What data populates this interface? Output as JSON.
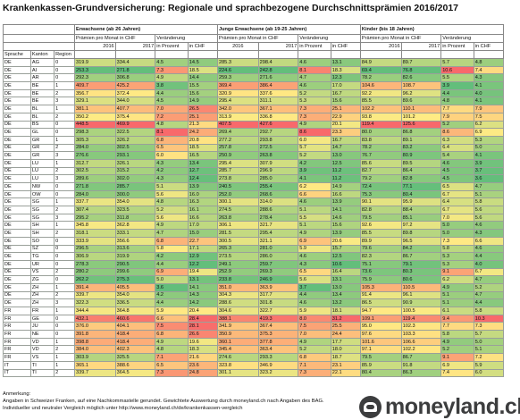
{
  "title": "Krankenkassen-Grundversicherung: Regionale und sprachbezogene Durchschnittsprämien 2016/2017",
  "headers": {
    "groups": [
      "Erwachsene (ab 26 Jahren)",
      "Junge Erwachsene (ab 19-25 Jahren)",
      "Kinder (bis 18 Jahren)"
    ],
    "premium_label": "Prämien pro Monat in CHF",
    "change_label": "Veränderung",
    "year_2016": "2016",
    "year_2017": "2017",
    "pct_label": "in Prozent",
    "chf_label": "in CHF",
    "sprache": "Sprache",
    "kanton": "Kanton",
    "region": "Region"
  },
  "colors": {
    "green": "#63be7b",
    "yellow": "#ffeb84",
    "red": "#f8696b"
  },
  "rows": [
    [
      "DE",
      "AG",
      "0",
      "319.9",
      "334.4",
      "4.5",
      "14.5",
      "285.3",
      "298.4",
      "4.6",
      "13.1",
      "84.9",
      "89.7",
      "5.7",
      "4.8"
    ],
    [
      "DE",
      "AI",
      "0",
      "253.3",
      "271.8",
      "7.3",
      "18.5",
      "224.6",
      "242.8",
      "8.1",
      "18.3",
      "69.4",
      "76.8",
      "10.6",
      "7.4"
    ],
    [
      "DE",
      "AR",
      "0",
      "292.3",
      "306.8",
      "4.9",
      "14.4",
      "259.3",
      "271.6",
      "4.7",
      "12.3",
      "78.2",
      "82.6",
      "5.5",
      "4.3"
    ],
    [
      "DE",
      "BE",
      "1",
      "409.7",
      "425.2",
      "3.8",
      "15.5",
      "369.4",
      "386.4",
      "4.6",
      "17.0",
      "104.6",
      "108.7",
      "3.9",
      "4.1"
    ],
    [
      "DE",
      "BE",
      "2",
      "356.7",
      "372.4",
      "4.4",
      "15.6",
      "320.9",
      "337.6",
      "5.2",
      "16.7",
      "92.2",
      "96.2",
      "4.4",
      "4.0"
    ],
    [
      "DE",
      "BE",
      "3",
      "329.1",
      "344.0",
      "4.5",
      "14.9",
      "295.4",
      "311.1",
      "5.3",
      "15.6",
      "85.5",
      "89.6",
      "4.8",
      "4.1"
    ],
    [
      "DE",
      "BL",
      "1",
      "381.1",
      "407.7",
      "7.0",
      "26.5",
      "342.0",
      "367.1",
      "7.3",
      "25.1",
      "102.2",
      "110.1",
      "7.7",
      "7.9"
    ],
    [
      "DE",
      "BL",
      "2",
      "350.2",
      "375.4",
      "7.2",
      "25.1",
      "313.9",
      "336.8",
      "7.3",
      "22.9",
      "93.8",
      "101.2",
      "7.9",
      "7.5"
    ],
    [
      "DE",
      "BS",
      "0",
      "448.5",
      "469.9",
      "4.8",
      "21.3",
      "407.5",
      "427.6",
      "4.9",
      "20.1",
      "119.4",
      "125.6",
      "5.2",
      "6.2"
    ],
    [
      "DE",
      "GL",
      "0",
      "298.3",
      "322.5",
      "8.1",
      "24.2",
      "269.4",
      "292.7",
      "8.6",
      "23.3",
      "80.0",
      "86.8",
      "8.6",
      "6.9"
    ],
    [
      "DE",
      "GR",
      "1",
      "305.3",
      "326.2",
      "6.8",
      "20.8",
      "277.2",
      "293.8",
      "6.0",
      "16.7",
      "83.8",
      "89.1",
      "6.3",
      "5.3"
    ],
    [
      "DE",
      "GR",
      "2",
      "284.0",
      "302.5",
      "6.5",
      "18.5",
      "257.8",
      "272.5",
      "5.7",
      "14.7",
      "78.2",
      "83.2",
      "6.4",
      "5.0"
    ],
    [
      "DE",
      "GR",
      "3",
      "276.6",
      "293.1",
      "6.0",
      "16.5",
      "250.9",
      "263.8",
      "5.2",
      "13.0",
      "76.7",
      "80.9",
      "5.4",
      "4.1"
    ],
    [
      "DE",
      "LU",
      "1",
      "312.7",
      "326.1",
      "4.3",
      "13.4",
      "295.4",
      "307.9",
      "4.2",
      "12.5",
      "85.6",
      "89.5",
      "4.6",
      "3.9"
    ],
    [
      "DE",
      "LU",
      "2",
      "302.5",
      "315.2",
      "4.2",
      "12.7",
      "285.7",
      "296.9",
      "3.9",
      "11.2",
      "82.7",
      "86.4",
      "4.5",
      "3.7"
    ],
    [
      "DE",
      "LU",
      "3",
      "289.6",
      "302.0",
      "4.3",
      "12.4",
      "273.8",
      "285.0",
      "4.1",
      "11.2",
      "79.2",
      "82.8",
      "4.5",
      "3.6"
    ],
    [
      "DE",
      "NW",
      "0",
      "271.8",
      "285.7",
      "5.1",
      "13.9",
      "240.5",
      "255.4",
      "6.2",
      "14.9",
      "72.4",
      "77.1",
      "6.5",
      "4.7"
    ],
    [
      "DE",
      "OW",
      "0",
      "284.0",
      "300.0",
      "5.6",
      "16.0",
      "252.0",
      "268.6",
      "6.6",
      "16.6",
      "75.3",
      "80.4",
      "6.7",
      "5.1"
    ],
    [
      "DE",
      "SG",
      "1",
      "337.7",
      "354.0",
      "4.8",
      "16.3",
      "300.1",
      "314.0",
      "4.6",
      "13.9",
      "90.1",
      "95.9",
      "6.4",
      "5.8"
    ],
    [
      "DE",
      "SG",
      "2",
      "307.4",
      "323.5",
      "5.2",
      "16.1",
      "274.5",
      "288.6",
      "5.1",
      "14.1",
      "82.8",
      "88.4",
      "6.7",
      "5.6"
    ],
    [
      "DE",
      "SG",
      "3",
      "295.2",
      "311.8",
      "5.6",
      "16.6",
      "263.8",
      "278.4",
      "5.5",
      "14.6",
      "79.5",
      "85.1",
      "7.0",
      "5.6"
    ],
    [
      "DE",
      "SH",
      "1",
      "345.8",
      "362.8",
      "4.9",
      "17.0",
      "306.1",
      "321.7",
      "5.1",
      "15.6",
      "92.6",
      "97.2",
      "5.0",
      "4.6"
    ],
    [
      "DE",
      "SH",
      "2",
      "318.1",
      "333.1",
      "4.7",
      "15.0",
      "281.5",
      "295.4",
      "4.9",
      "13.9",
      "85.5",
      "89.8",
      "5.0",
      "4.3"
    ],
    [
      "DE",
      "SO",
      "0",
      "333.9",
      "356.6",
      "6.8",
      "22.7",
      "300.5",
      "321.1",
      "6.9",
      "20.6",
      "89.9",
      "96.5",
      "7.3",
      "6.6"
    ],
    [
      "DE",
      "SZ",
      "0",
      "296.5",
      "313.6",
      "5.8",
      "17.1",
      "265.3",
      "281.0",
      "5.9",
      "15.7",
      "79.6",
      "84.2",
      "5.8",
      "4.6"
    ],
    [
      "DE",
      "TG",
      "0",
      "306.9",
      "319.9",
      "4.2",
      "12.9",
      "273.5",
      "286.0",
      "4.6",
      "12.5",
      "82.3",
      "86.7",
      "5.3",
      "4.4"
    ],
    [
      "DE",
      "UR",
      "0",
      "278.3",
      "290.5",
      "4.4",
      "12.2",
      "249.1",
      "259.7",
      "4.3",
      "10.6",
      "75.1",
      "79.1",
      "5.3",
      "4.0"
    ],
    [
      "DE",
      "VS",
      "2",
      "280.2",
      "299.6",
      "6.9",
      "19.4",
      "252.9",
      "269.3",
      "6.5",
      "16.4",
      "73.6",
      "80.3",
      "9.1",
      "6.7"
    ],
    [
      "DE",
      "ZG",
      "0",
      "262.2",
      "275.3",
      "5.0",
      "13.1",
      "233.8",
      "246.9",
      "5.6",
      "13.1",
      "75.9",
      "80.6",
      "6.2",
      "4.7"
    ],
    [
      "DE",
      "ZH",
      "1",
      "391.4",
      "405.5",
      "3.6",
      "14.1",
      "351.0",
      "363.9",
      "3.7",
      "13.0",
      "105.3",
      "110.5",
      "4.9",
      "5.2"
    ],
    [
      "DE",
      "ZH",
      "2",
      "339.7",
      "354.0",
      "4.2",
      "14.3",
      "304.3",
      "317.7",
      "4.4",
      "13.4",
      "91.4",
      "96.1",
      "5.1",
      "4.7"
    ],
    [
      "DE",
      "ZH",
      "3",
      "322.3",
      "336.5",
      "4.4",
      "14.2",
      "288.6",
      "301.8",
      "4.6",
      "13.2",
      "86.5",
      "90.9",
      "5.1",
      "4.4"
    ],
    [
      "FR",
      "FR",
      "1",
      "344.4",
      "364.8",
      "5.9",
      "20.4",
      "304.6",
      "322.7",
      "5.9",
      "18.1",
      "94.7",
      "100.5",
      "6.1",
      "5.8"
    ],
    [
      "FR",
      "GE",
      "0",
      "432.1",
      "460.6",
      "6.6",
      "28.4",
      "388.1",
      "419.3",
      "8.0",
      "31.2",
      "109.1",
      "119.4",
      "9.4",
      "10.3"
    ],
    [
      "FR",
      "JU",
      "0",
      "376.0",
      "404.1",
      "7.5",
      "28.1",
      "341.9",
      "367.4",
      "7.5",
      "25.5",
      "95.0",
      "102.3",
      "7.7",
      "7.3"
    ],
    [
      "FR",
      "NE",
      "0",
      "391.8",
      "418.4",
      "6.8",
      "26.6",
      "350.9",
      "375.3",
      "7.0",
      "24.4",
      "97.6",
      "103.3",
      "5.8",
      "5.7"
    ],
    [
      "FR",
      "VD",
      "1",
      "398.8",
      "418.4",
      "4.9",
      "19.6",
      "360.1",
      "377.8",
      "4.9",
      "17.7",
      "101.6",
      "106.6",
      "4.9",
      "5.0"
    ],
    [
      "FR",
      "VD",
      "2",
      "384.0",
      "402.3",
      "4.8",
      "18.3",
      "345.4",
      "363.4",
      "5.2",
      "18.0",
      "97.1",
      "102.2",
      "5.2",
      "5.1"
    ],
    [
      "FR",
      "VS",
      "1",
      "303.9",
      "325.5",
      "7.1",
      "21.6",
      "274.6",
      "293.3",
      "6.8",
      "18.7",
      "79.5",
      "86.7",
      "9.1",
      "7.2"
    ],
    [
      "IT",
      "TI",
      "1",
      "365.1",
      "388.6",
      "6.5",
      "23.6",
      "323.8",
      "346.9",
      "7.1",
      "23.1",
      "85.9",
      "91.8",
      "6.9",
      "5.9"
    ],
    [
      "IT",
      "TI",
      "2",
      "339.7",
      "364.5",
      "7.3",
      "24.8",
      "301.1",
      "323.2",
      "7.3",
      "22.1",
      "80.4",
      "86.3",
      "7.4",
      "6.0"
    ]
  ],
  "footer": {
    "line1": "Anmerkung:",
    "line2": "Angaben in Schweizer Franken, auf eine Nachkommastelle gerundet. Gewichtete Auswertung durch moneyland.ch nach Angaben des BAG.",
    "line3": "Individueller und neutraler Vergleich möglich unter http://www.moneyland.ch/de/krankenkassen-vergleich"
  },
  "logo_text": "moneyland.ch"
}
